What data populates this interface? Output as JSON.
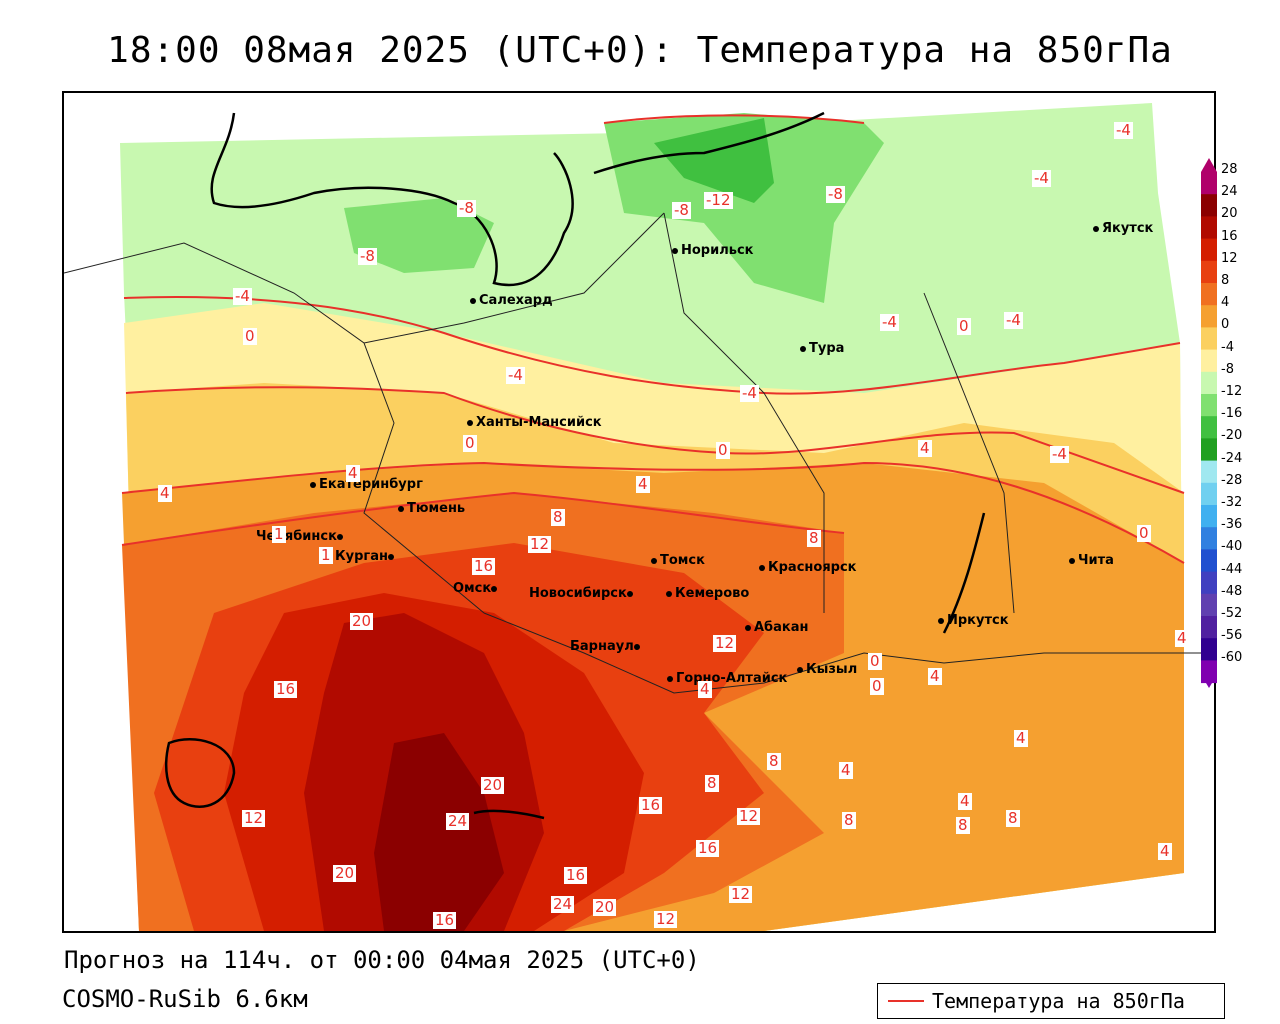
{
  "title": "18:00 08мая 2025 (UTC+0): Температура на 850гПа",
  "footer": {
    "forecast": "Прогноз на 114ч. от 00:00 04мая 2025 (UTC+0)",
    "model": "COSMO-RuSib 6.6км"
  },
  "legend": {
    "label": "Температура на 850гПа",
    "line_color": "#e8312a"
  },
  "colorbar": {
    "labels": [
      "28",
      "24",
      "20",
      "16",
      "12",
      "8",
      "4",
      "0",
      "-4",
      "-8",
      "-12",
      "-16",
      "-20",
      "-24",
      "-28",
      "-32",
      "-36",
      "-40",
      "-44",
      "-48",
      "-52",
      "-56",
      "-60"
    ],
    "colors": [
      "#b0006a",
      "#8b0000",
      "#b10a00",
      "#d41e00",
      "#e84010",
      "#f07020",
      "#f5a030",
      "#fbd060",
      "#fff0a0",
      "#c8f8b0",
      "#80e070",
      "#40c040",
      "#20a020",
      "#a0e8f0",
      "#70d0f0",
      "#40b0f0",
      "#3080e0",
      "#2050d0",
      "#4040c0",
      "#6040b0",
      "#5020a0",
      "#300090",
      "#8000b0"
    ]
  },
  "cities": [
    {
      "name": "Якутск"
    },
    {
      "name": "Норильск"
    },
    {
      "name": "Салехард"
    },
    {
      "name": "Тура"
    },
    {
      "name": "Ханты-Мансийск"
    },
    {
      "name": "Екатеринбург"
    },
    {
      "name": "Тюмень"
    },
    {
      "name": "Челябинск"
    },
    {
      "name": "Курган"
    },
    {
      "name": "Омск"
    },
    {
      "name": "Новосибирск"
    },
    {
      "name": "Томск"
    },
    {
      "name": "Кемерово"
    },
    {
      "name": "Красноярск"
    },
    {
      "name": "Барнаул"
    },
    {
      "name": "Абакан"
    },
    {
      "name": "Горно-Алтайск"
    },
    {
      "name": "Кызыл"
    },
    {
      "name": "Иркутск"
    },
    {
      "name": "Чита"
    }
  ],
  "contour_labels": [
    "-4",
    "-4",
    "-12",
    "-8",
    "-8",
    "-8",
    "-8",
    "-4",
    "0",
    "-4",
    "-4",
    "0",
    "-4",
    "-4",
    "4",
    "0",
    "0",
    "4",
    "4",
    "-4",
    "0",
    "4",
    "8",
    "12",
    "16",
    "16",
    "8",
    "20",
    "12",
    "16",
    "20",
    "24",
    "12",
    "20",
    "16",
    "24",
    "20",
    "16",
    "12",
    "16",
    "12",
    "12",
    "8",
    "4",
    "0",
    "0",
    "4",
    "4",
    "8",
    "4",
    "8",
    "8",
    "4",
    "4",
    "8",
    "4",
    "1",
    "1"
  ]
}
